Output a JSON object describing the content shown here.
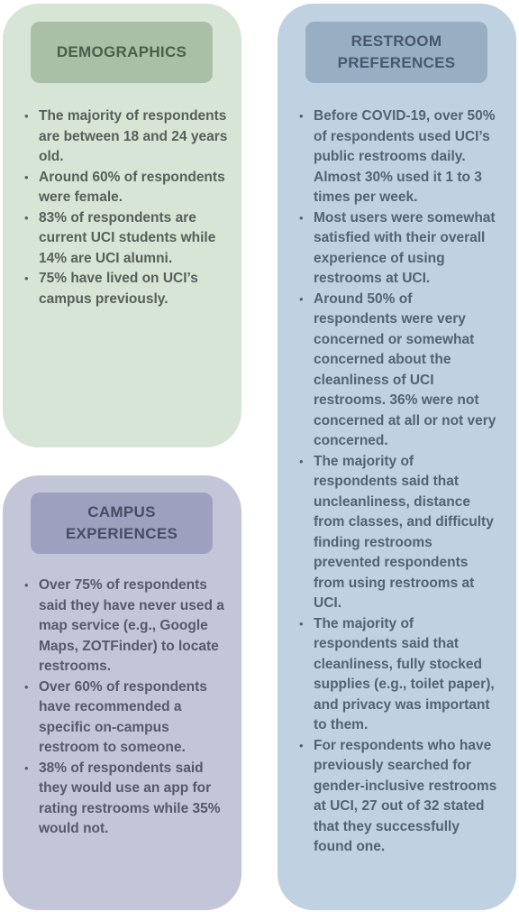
{
  "demographics": {
    "title": "DEMOGRAPHICS",
    "items": [
      "The majority of respondents are between 18 and 24 years old.",
      "Around 60% of respondents were female.",
      "83% of respondents are current UCI students while 14% are UCI alumni.",
      "75% have lived on UCI’s campus previously."
    ]
  },
  "campus_experiences": {
    "title_line1": "CAMPUS",
    "title_line2": "EXPERIENCES",
    "items": [
      "Over 75% of respondents said they have never used a map service (e.g., Google Maps, ZOTFinder) to locate restrooms.",
      "Over 60% of respondents have recommended a specific on-campus restroom to someone.",
      "38% of respondents said they would use an app for rating restrooms while 35% would not."
    ]
  },
  "restroom_preferences": {
    "title_line1": "RESTROOM",
    "title_line2": "PREFERENCES",
    "items": [
      "Before COVID-19, over 50% of respondents used UCI’s public restrooms daily. Almost 30% used it 1 to 3 times per week.",
      "Most users were somewhat satisfied with their overall experience of using restrooms at UCI.",
      "Around 50% of respondents were very concerned or somewhat concerned about the cleanliness of UCI restrooms. 36% were not concerned at all or not very concerned.",
      "The majority of respondents said that uncleanliness, distance from classes, and difficulty finding restrooms prevented respondents from using restrooms at UCI.",
      "The majority of respondents said that cleanliness, fully stocked supplies (e.g., toilet paper), and privacy was important to them.",
      "For respondents who have previously searched for gender-inclusive restrooms at UCI, 27 out of 32 stated that they successfully found one."
    ]
  },
  "bullet_glyph": "•"
}
